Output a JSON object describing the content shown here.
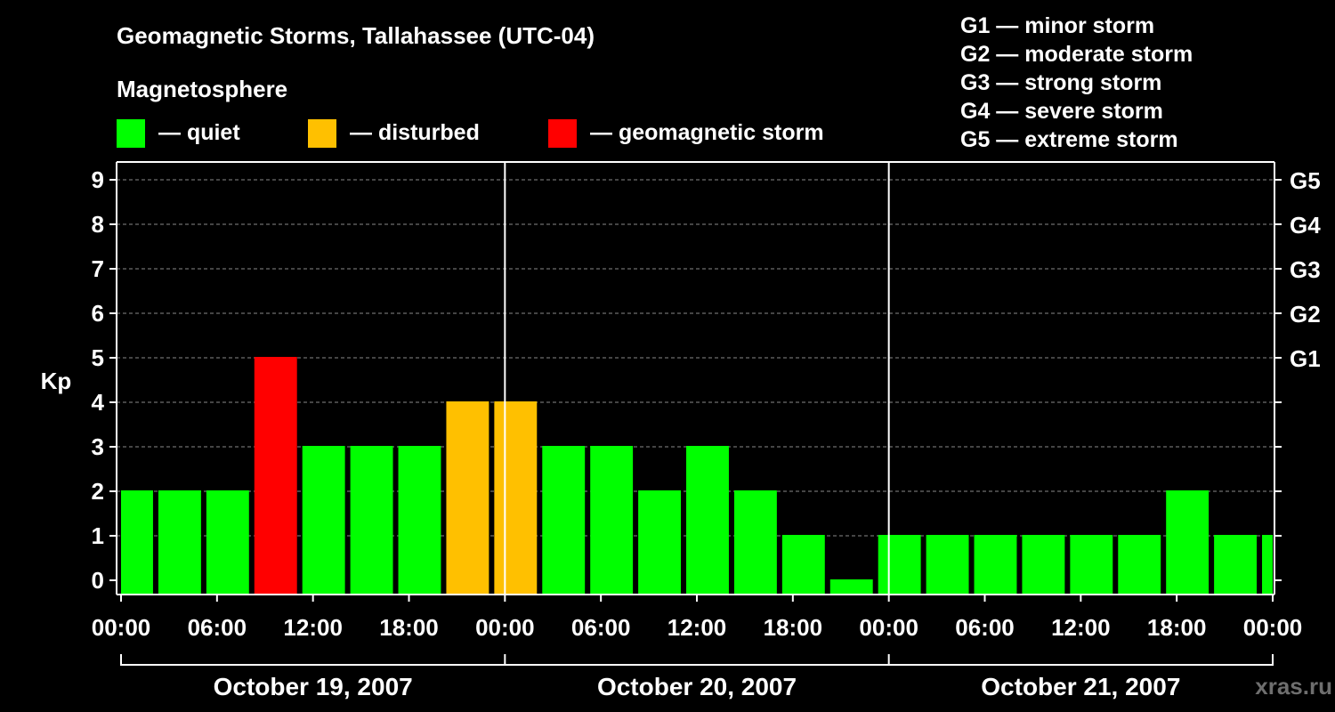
{
  "header": {
    "title": "Geomagnetic Storms, Tallahassee (UTC-04)",
    "subtitle": "Magnetosphere"
  },
  "legend": {
    "quiet": {
      "label": "— quiet",
      "color": "#00ff00"
    },
    "disturbed": {
      "label": "— disturbed",
      "color": "#ffc000"
    },
    "storm": {
      "label": "— geomagnetic storm",
      "color": "#ff0000"
    }
  },
  "g_legend": [
    "G1 — minor storm",
    "G2 — moderate storm",
    "G3 — strong storm",
    "G4 — severe storm",
    "G5 — extreme storm"
  ],
  "watermark": "xras.ru",
  "chart_data": {
    "type": "bar",
    "ylabel": "Kp",
    "ylim": [
      0,
      9
    ],
    "y_ticks": [
      "0",
      "1",
      "2",
      "3",
      "4",
      "5",
      "6",
      "7",
      "8",
      "9"
    ],
    "g_levels": [
      {
        "label": "G1",
        "kp": 5
      },
      {
        "label": "G2",
        "kp": 6
      },
      {
        "label": "G3",
        "kp": 7
      },
      {
        "label": "G4",
        "kp": 8
      },
      {
        "label": "G5",
        "kp": 9
      }
    ],
    "x_tick_labels": [
      "00:00",
      "06:00",
      "12:00",
      "18:00",
      "00:00",
      "06:00",
      "12:00",
      "18:00",
      "00:00",
      "06:00",
      "12:00",
      "18:00",
      "00:00"
    ],
    "days": [
      "October 19, 2007",
      "October 20, 2007",
      "October 21, 2007"
    ],
    "grid": true,
    "thresholds": {
      "disturbed": 4,
      "storm": 5
    },
    "bars": [
      {
        "start_hour": 0,
        "end_hour": 2,
        "kp": 2
      },
      {
        "start_hour": 2,
        "end_hour": 5,
        "kp": 2
      },
      {
        "start_hour": 5,
        "end_hour": 8,
        "kp": 2
      },
      {
        "start_hour": 8,
        "end_hour": 11,
        "kp": 5
      },
      {
        "start_hour": 11,
        "end_hour": 14,
        "kp": 3
      },
      {
        "start_hour": 14,
        "end_hour": 17,
        "kp": 3
      },
      {
        "start_hour": 17,
        "end_hour": 20,
        "kp": 3
      },
      {
        "start_hour": 20,
        "end_hour": 23,
        "kp": 4
      },
      {
        "start_hour": 23,
        "end_hour": 26,
        "kp": 4
      },
      {
        "start_hour": 26,
        "end_hour": 29,
        "kp": 3
      },
      {
        "start_hour": 29,
        "end_hour": 32,
        "kp": 3
      },
      {
        "start_hour": 32,
        "end_hour": 35,
        "kp": 2
      },
      {
        "start_hour": 35,
        "end_hour": 38,
        "kp": 3
      },
      {
        "start_hour": 38,
        "end_hour": 41,
        "kp": 2
      },
      {
        "start_hour": 41,
        "end_hour": 44,
        "kp": 1
      },
      {
        "start_hour": 44,
        "end_hour": 47,
        "kp": 0
      },
      {
        "start_hour": 47,
        "end_hour": 50,
        "kp": 1
      },
      {
        "start_hour": 50,
        "end_hour": 53,
        "kp": 1
      },
      {
        "start_hour": 53,
        "end_hour": 56,
        "kp": 1
      },
      {
        "start_hour": 56,
        "end_hour": 59,
        "kp": 1
      },
      {
        "start_hour": 59,
        "end_hour": 62,
        "kp": 1
      },
      {
        "start_hour": 62,
        "end_hour": 65,
        "kp": 1
      },
      {
        "start_hour": 65,
        "end_hour": 68,
        "kp": 2
      },
      {
        "start_hour": 68,
        "end_hour": 71,
        "kp": 1
      },
      {
        "start_hour": 71,
        "end_hour": 72,
        "kp": 1
      }
    ]
  }
}
